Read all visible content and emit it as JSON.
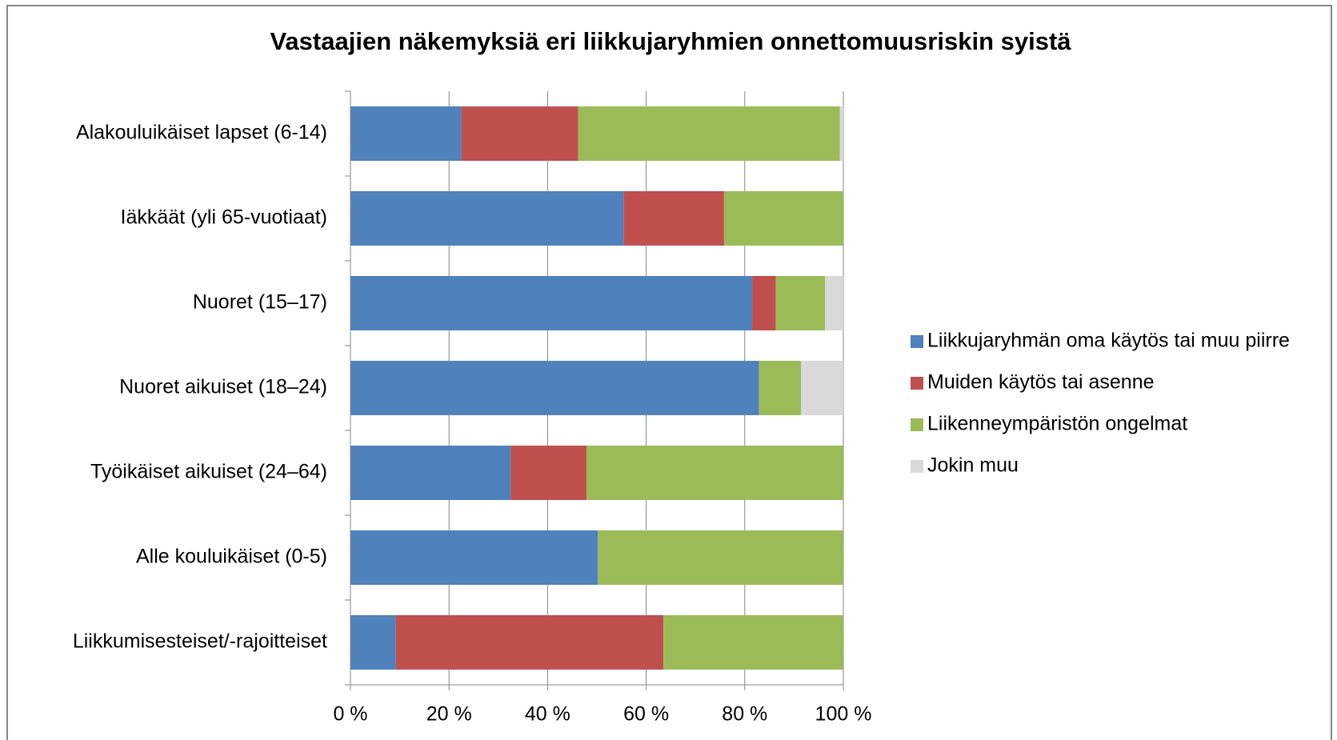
{
  "chart_data": {
    "type": "stacked_barh",
    "title": "Vastaajien näkemyksiä eri liikkujaryhmien onnettomuusriskin syistä",
    "categories": [
      "Alakouluikäiset lapset (6-14)",
      "Iäkkäät (yli 65-vuotiaat)",
      "Nuoret (15–17)",
      "Nuoret aikuiset (18–24)",
      "Työikäiset aikuiset (24–64)",
      "Alle kouluikäiset (0-5)",
      "Liikkumisesteiset/-rajoitteiset"
    ],
    "series": [
      {
        "name": "Liikkujaryhmän oma käytös tai muu piirre",
        "color": "#4f81bd",
        "values": [
          22.5,
          55.4,
          81.5,
          82.9,
          32.5,
          50.2,
          9.2
        ]
      },
      {
        "name": "Muiden käytös tai asenne",
        "color": "#c0504d",
        "values": [
          23.7,
          20.4,
          4.8,
          0,
          15.4,
          0,
          54.3
        ]
      },
      {
        "name": "Liikenneympäristön ongelmat",
        "color": "#9bbb59",
        "values": [
          53.1,
          24.2,
          10.0,
          8.5,
          52.1,
          49.8,
          36.5
        ]
      },
      {
        "name": "Jokin muu",
        "color": "#d9d9d9",
        "values": [
          0.7,
          0,
          3.7,
          8.6,
          0,
          0,
          0
        ]
      }
    ],
    "xlim": [
      0,
      100
    ],
    "xticks": [
      {
        "value": 0,
        "label": "0 %"
      },
      {
        "value": 20,
        "label": "20 %"
      },
      {
        "value": 40,
        "label": "40 %"
      },
      {
        "value": 60,
        "label": "60 %"
      },
      {
        "value": 80,
        "label": "80 %"
      },
      {
        "value": 100,
        "label": "100 %"
      }
    ],
    "grid": true,
    "legend": "right"
  }
}
